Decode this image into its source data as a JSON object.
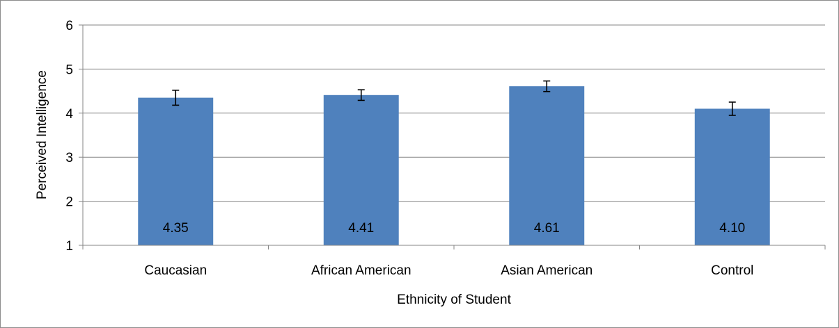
{
  "chart_data": {
    "type": "bar",
    "categories": [
      "Caucasian",
      "African American",
      "Asian American",
      "Control"
    ],
    "values": [
      4.35,
      4.41,
      4.61,
      4.1
    ],
    "data_labels": [
      "4.35",
      "4.41",
      "4.61",
      "4.10"
    ],
    "error": [
      0.17,
      0.12,
      0.12,
      0.15
    ],
    "xlabel": "Ethnicity of Student",
    "ylabel": "Perceived Intelligence",
    "ylim": [
      1,
      6
    ],
    "yticks": [
      1,
      2,
      3,
      4,
      5,
      6
    ],
    "ytick_labels": [
      "1",
      "2",
      "3",
      "4",
      "5",
      "6"
    ],
    "bar_color": "#4F81BD",
    "grid": true,
    "legend": "none"
  }
}
